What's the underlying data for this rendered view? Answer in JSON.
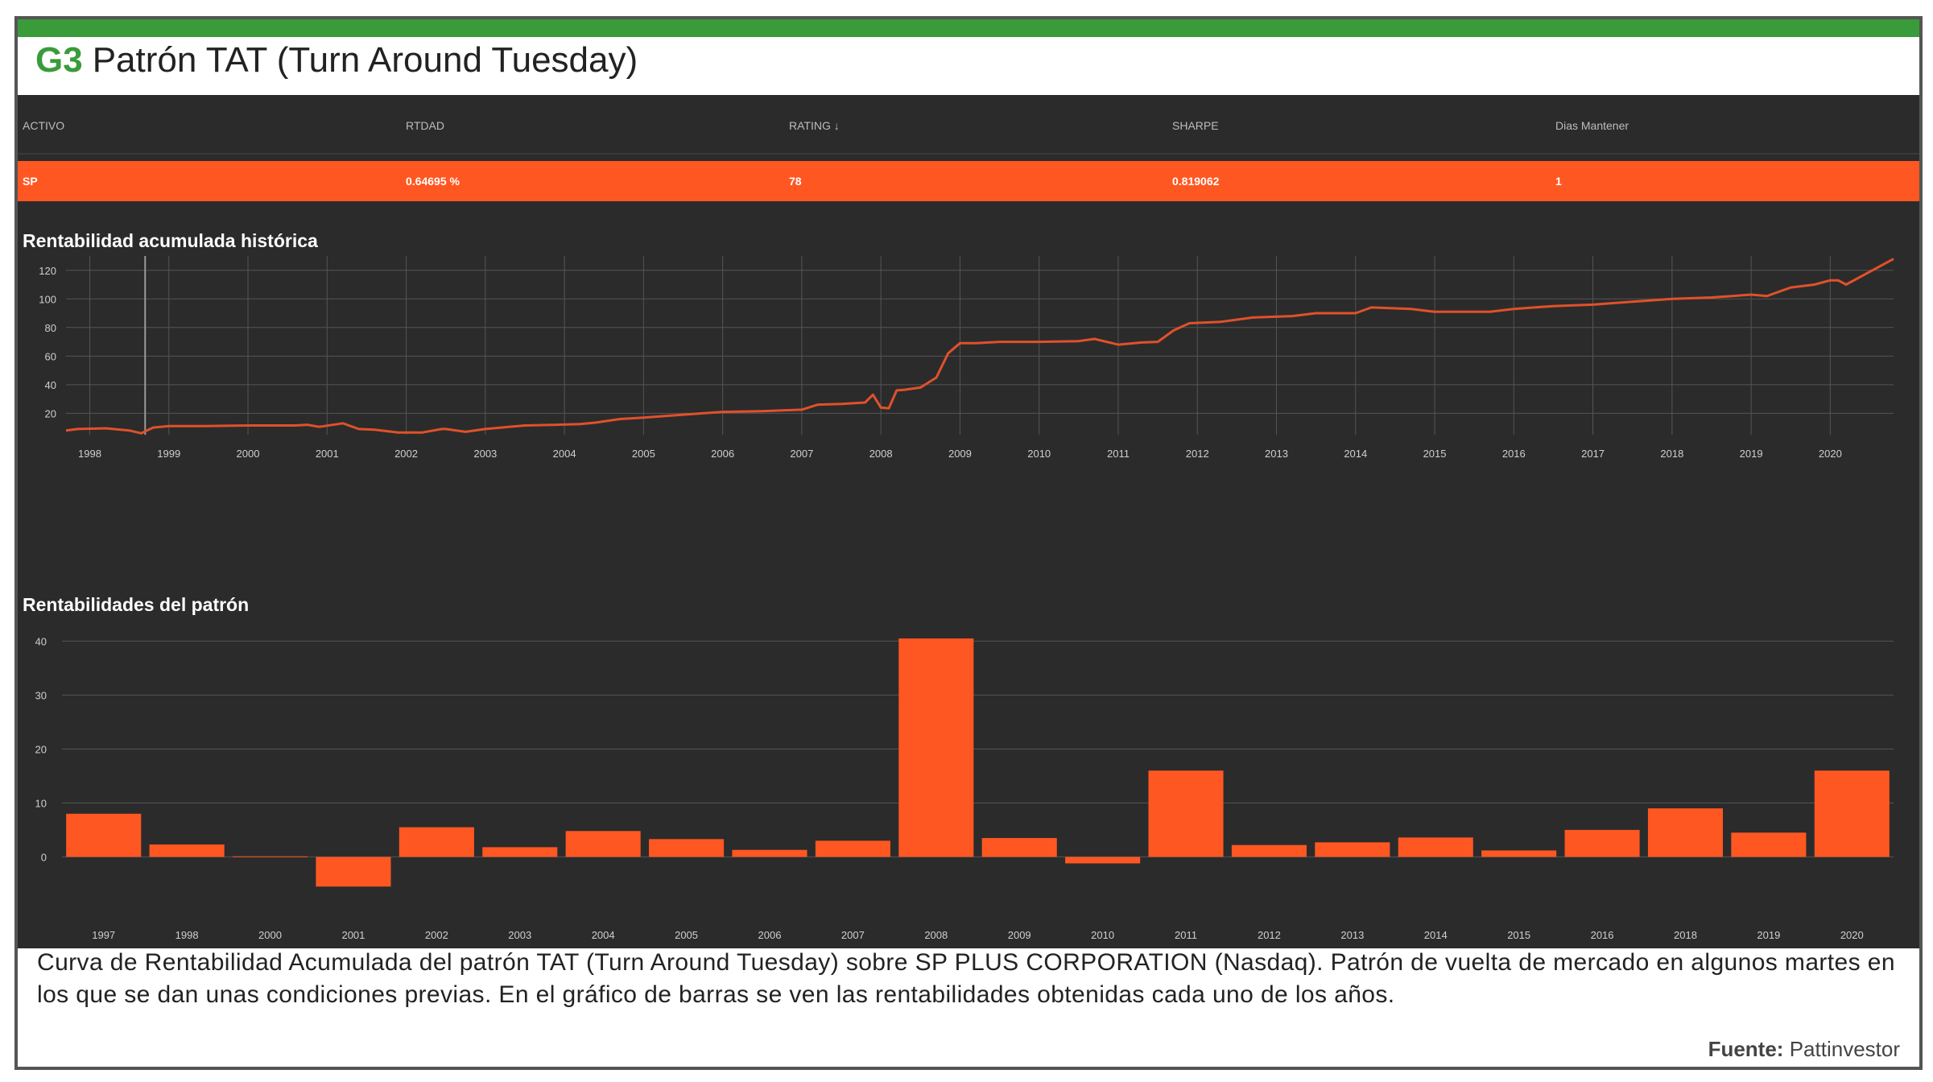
{
  "header": {
    "code": "G3",
    "title": "Patrón TAT (Turn Around Tuesday)"
  },
  "table": {
    "columns": [
      "ACTIVO",
      "RTDAD",
      "RATING",
      "SHARPE",
      "Dias Mantener"
    ],
    "sort_indicator": "↓",
    "row": [
      "SP",
      "0.64695 %",
      "78",
      "0.819062",
      "1"
    ]
  },
  "chart_data": [
    {
      "type": "line",
      "title": "Rentabilidad acumulada histórica",
      "x_tick_labels": [
        "1998",
        "1999",
        "2000",
        "2001",
        "2002",
        "2003",
        "2004",
        "2005",
        "2006",
        "2007",
        "2008",
        "2009",
        "2010",
        "2011",
        "2012",
        "2013",
        "2014",
        "2015",
        "2016",
        "2017",
        "2018",
        "2019",
        "2020"
      ],
      "y_tick_labels": [
        "20",
        "40",
        "60",
        "80",
        "100",
        "120"
      ],
      "ylim": [
        5,
        130
      ],
      "xlim": [
        1997.7,
        2020.8
      ],
      "grid": true,
      "series": [
        {
          "color": "#e0512b",
          "x": [
            1997.7,
            1997.85,
            1998.2,
            1998.5,
            1998.65,
            1998.8,
            1999.0,
            1999.4,
            2000.0,
            2000.6,
            2000.75,
            2000.9,
            2001.2,
            2001.4,
            2001.6,
            2001.9,
            2002.0,
            2002.2,
            2002.45,
            2002.5,
            2002.75,
            2003.0,
            2003.2,
            2003.5,
            2003.9,
            2004.2,
            2004.4,
            2004.7,
            2005.0,
            2005.5,
            2006.0,
            2006.5,
            2007.0,
            2007.2,
            2007.5,
            2007.8,
            2007.9,
            2008.0,
            2008.1,
            2008.2,
            2008.3,
            2008.5,
            2008.7,
            2008.85,
            2009.0,
            2009.2,
            2009.5,
            2010.0,
            2010.5,
            2010.7,
            2011.0,
            2011.3,
            2011.5,
            2011.7,
            2011.9,
            2012.3,
            2012.7,
            2013.2,
            2013.5,
            2014.0,
            2014.2,
            2014.7,
            2015.0,
            2015.7,
            2016.0,
            2016.5,
            2017.0,
            2017.5,
            2018.0,
            2018.5,
            2019.0,
            2019.2,
            2019.5,
            2019.8,
            2020.0,
            2020.1,
            2020.2,
            2020.8
          ],
          "values": [
            8,
            9,
            9.5,
            8,
            6,
            10,
            11,
            11,
            11.5,
            11.5,
            12,
            10.5,
            13,
            9,
            8.5,
            6.5,
            6.5,
            6.5,
            9,
            9,
            7,
            9,
            10,
            11.5,
            12,
            12.5,
            13.5,
            16,
            17,
            19,
            21,
            21.5,
            22.5,
            26,
            26.5,
            27.5,
            33,
            24,
            23.5,
            36,
            36.5,
            38,
            45,
            62,
            69,
            69,
            70,
            70,
            70.5,
            72,
            68,
            69.5,
            70,
            78,
            83,
            84,
            87,
            88,
            90,
            90,
            94,
            93,
            91,
            91,
            93,
            95,
            96,
            98,
            100,
            101,
            103,
            102,
            108,
            110,
            113,
            113,
            110,
            128
          ]
        }
      ]
    },
    {
      "type": "bar",
      "title": "Rentabilidades del patrón",
      "categories": [
        "1997",
        "1998",
        "2000",
        "2001",
        "2002",
        "2003",
        "2004",
        "2005",
        "2006",
        "2007",
        "2008",
        "2009",
        "2010",
        "2011",
        "2012",
        "2013",
        "2014",
        "2015",
        "2016",
        "2018",
        "2019",
        "2020"
      ],
      "values": [
        8,
        2.3,
        0.1,
        -5.5,
        5.5,
        1.8,
        4.8,
        3.3,
        1.3,
        3,
        40.5,
        3.5,
        -1.2,
        16,
        2.2,
        2.7,
        3.6,
        1.2,
        5,
        9,
        4.5,
        16
      ],
      "y_tick_labels": [
        "0",
        "10",
        "20",
        "30",
        "40"
      ],
      "ylim": [
        -8,
        42
      ],
      "grid": true,
      "color": "#ff5722"
    }
  ],
  "caption": "Curva de Rentabilidad Acumulada del patrón TAT (Turn Around Tuesday) sobre SP PLUS CORPORATION (Nasdaq). Patrón de vuelta de mercado en algunos martes en los que se dan unas condiciones previas. En el gráfico de barras se ven las rentabilidades obtenidas cada uno de los años.",
  "source": {
    "label": "Fuente:",
    "value": "Pattinvestor"
  }
}
